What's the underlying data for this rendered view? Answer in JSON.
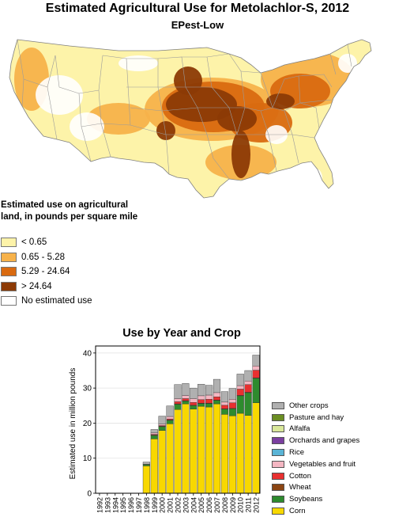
{
  "title": "Estimated Agricultural Use for Metolachlor-S, 2012",
  "subtitle": "EPest-Low",
  "map": {
    "colors": {
      "low": "#fdf3a9",
      "mid": "#f7b24a",
      "high": "#d96a10",
      "very_high": "#8c3a05",
      "none": "#ffffff",
      "boundary": "#9b9b9b"
    }
  },
  "legend": {
    "title": "Estimated use on agricultural land, in pounds per square mile",
    "items": [
      {
        "label": "< 0.65",
        "color": "#fdf3a9"
      },
      {
        "label": "0.65 - 5.28",
        "color": "#f7b24a"
      },
      {
        "label": "5.29 - 24.64",
        "color": "#d96a10"
      },
      {
        "label": "> 24.64",
        "color": "#8c3a05"
      },
      {
        "label": "No estimated use",
        "color": "#ffffff"
      }
    ]
  },
  "chart_data": {
    "type": "bar",
    "stacked": true,
    "title": "Use by Year and Crop",
    "ylabel": "Estimated use in million pounds",
    "xlabel": "",
    "ylim": [
      0,
      42
    ],
    "yticks": [
      0,
      10,
      20,
      30,
      40
    ],
    "grid": true,
    "legend_position": "right",
    "categories": [
      "1992",
      "1993",
      "1994",
      "1995",
      "1996",
      "1997",
      "1998",
      "1999",
      "2000",
      "2001",
      "2002",
      "2003",
      "2004",
      "2005",
      "2006",
      "2007",
      "2008",
      "2009",
      "2010",
      "2011",
      "2012"
    ],
    "series": [
      {
        "name": "Corn",
        "color": "#f8d800",
        "values": [
          0,
          0,
          0,
          0,
          0,
          0,
          7.8,
          15.5,
          17.9,
          19.8,
          23.9,
          25.5,
          24.0,
          24.8,
          24.6,
          25.5,
          22.5,
          22.1,
          22.8,
          22.2,
          25.8
        ]
      },
      {
        "name": "Soybeans",
        "color": "#2e8b2e",
        "values": [
          0,
          0,
          0,
          0,
          0,
          0,
          0.4,
          1.0,
          1.1,
          1.0,
          1.5,
          0.8,
          1.0,
          0.8,
          1.0,
          1.0,
          1.5,
          2.0,
          5.0,
          6.5,
          7.0
        ]
      },
      {
        "name": "Wheat",
        "color": "#8b4513",
        "values": [
          0,
          0,
          0,
          0,
          0,
          0,
          0,
          0.1,
          0.1,
          0.1,
          0.1,
          0.1,
          0.1,
          0.1,
          0.1,
          0.1,
          0.1,
          0.1,
          0.1,
          0.1,
          0.1
        ]
      },
      {
        "name": "Cotton",
        "color": "#e83030",
        "values": [
          0,
          0,
          0,
          0,
          0,
          0,
          0,
          0.2,
          0.2,
          0.3,
          0.6,
          0.6,
          0.8,
          1.0,
          1.1,
          0.9,
          1.0,
          1.6,
          1.8,
          2.2,
          2.2
        ]
      },
      {
        "name": "Vegetables and fruit",
        "color": "#f4b6c2",
        "values": [
          0,
          0,
          0,
          0,
          0,
          0,
          0.1,
          0.4,
          0.4,
          0.7,
          0.9,
          0.9,
          1.1,
          1.1,
          1.2,
          1.2,
          0.9,
          1.0,
          1.0,
          1.0,
          1.2
        ]
      },
      {
        "name": "Rice",
        "color": "#5ab4d6",
        "values": [
          0,
          0,
          0,
          0,
          0,
          0,
          0,
          0,
          0,
          0,
          0,
          0,
          0,
          0,
          0,
          0,
          0,
          0,
          0,
          0,
          0
        ]
      },
      {
        "name": "Orchards and grapes",
        "color": "#7b3fa0",
        "values": [
          0,
          0,
          0,
          0,
          0,
          0,
          0,
          0,
          0,
          0,
          0,
          0,
          0,
          0,
          0,
          0,
          0,
          0,
          0,
          0,
          0
        ]
      },
      {
        "name": "Alfalfa",
        "color": "#d9e89a",
        "values": [
          0,
          0,
          0,
          0,
          0,
          0,
          0,
          0,
          0,
          0,
          0,
          0,
          0,
          0,
          0,
          0,
          0,
          0,
          0,
          0,
          0
        ]
      },
      {
        "name": "Pasture and hay",
        "color": "#6b8e23",
        "values": [
          0,
          0,
          0,
          0,
          0,
          0,
          0,
          0,
          0,
          0,
          0,
          0,
          0,
          0,
          0,
          0,
          0,
          0,
          0,
          0,
          0
        ]
      },
      {
        "name": "Other crops",
        "color": "#b0b0b0",
        "values": [
          0,
          0,
          0,
          0,
          0,
          0,
          0.6,
          1.0,
          2.3,
          3.0,
          4.0,
          3.4,
          3.0,
          3.3,
          2.8,
          3.8,
          3.0,
          3.1,
          3.3,
          3.0,
          3.1
        ]
      }
    ]
  }
}
